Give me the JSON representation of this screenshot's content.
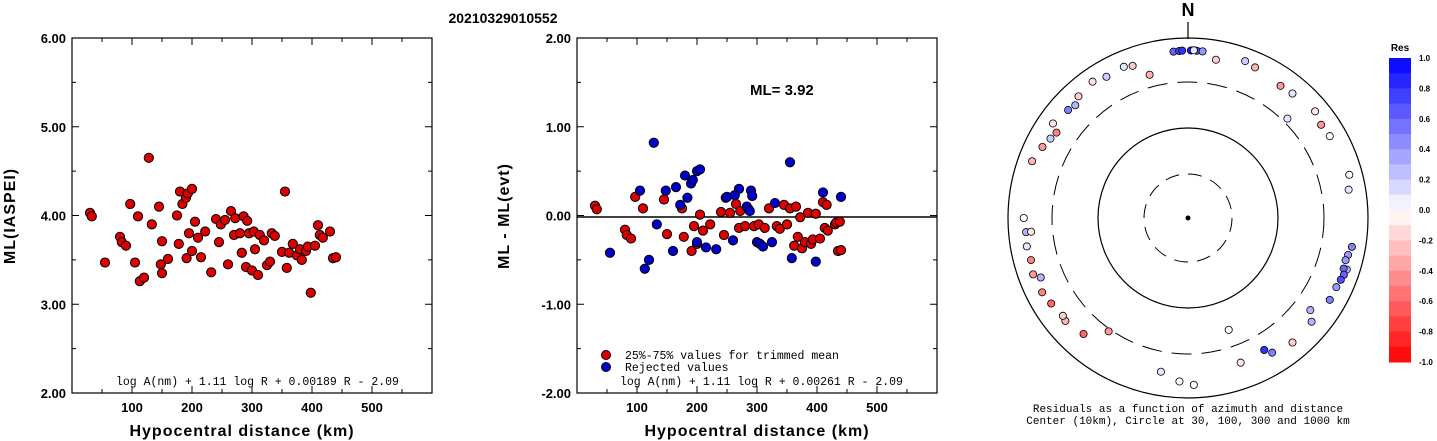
{
  "title": "20210329010552",
  "chart_data": [
    {
      "type": "scatter",
      "xlabel": "Hypocentral distance (km)",
      "ylabel": "ML(IASPEI)",
      "xlim": [
        0,
        600
      ],
      "ylim": [
        2.0,
        6.0
      ],
      "xticks": [
        "100",
        "200",
        "300",
        "400",
        "500"
      ],
      "yticks": [
        "2.00",
        "3.00",
        "4.00",
        "5.00",
        "6.00"
      ],
      "formula": "log A(nm) + 1.11 log R + 0.00189 R - 2.09",
      "points": [
        [
          30,
          4.03
        ],
        [
          33,
          3.99
        ],
        [
          55,
          3.47
        ],
        [
          80,
          3.76
        ],
        [
          83,
          3.7
        ],
        [
          90,
          3.66
        ],
        [
          97,
          4.13
        ],
        [
          105,
          3.47
        ],
        [
          110,
          3.99
        ],
        [
          113,
          3.26
        ],
        [
          120,
          3.3
        ],
        [
          128,
          4.65
        ],
        [
          133,
          3.9
        ],
        [
          145,
          4.1
        ],
        [
          148,
          3.45
        ],
        [
          150,
          3.71
        ],
        [
          150,
          3.35
        ],
        [
          160,
          3.51
        ],
        [
          175,
          4.0
        ],
        [
          178,
          3.68
        ],
        [
          180,
          4.27
        ],
        [
          184,
          4.13
        ],
        [
          190,
          4.2
        ],
        [
          191,
          3.52
        ],
        [
          193,
          4.25
        ],
        [
          195,
          3.8
        ],
        [
          200,
          4.3
        ],
        [
          200,
          3.6
        ],
        [
          205,
          3.93
        ],
        [
          210,
          3.75
        ],
        [
          215,
          3.53
        ],
        [
          222,
          3.82
        ],
        [
          232,
          3.36
        ],
        [
          240,
          3.96
        ],
        [
          245,
          3.7
        ],
        [
          248,
          3.9
        ],
        [
          255,
          3.95
        ],
        [
          260,
          3.45
        ],
        [
          265,
          4.05
        ],
        [
          270,
          3.78
        ],
        [
          272,
          3.97
        ],
        [
          280,
          3.8
        ],
        [
          283,
          3.58
        ],
        [
          286,
          3.99
        ],
        [
          290,
          3.42
        ],
        [
          292,
          3.94
        ],
        [
          295,
          3.8
        ],
        [
          300,
          3.38
        ],
        [
          303,
          3.82
        ],
        [
          305,
          3.62
        ],
        [
          310,
          3.33
        ],
        [
          313,
          3.78
        ],
        [
          320,
          3.72
        ],
        [
          325,
          3.44
        ],
        [
          330,
          3.48
        ],
        [
          333,
          3.8
        ],
        [
          338,
          3.77
        ],
        [
          350,
          3.59
        ],
        [
          355,
          4.27
        ],
        [
          358,
          3.41
        ],
        [
          362,
          3.58
        ],
        [
          368,
          3.68
        ],
        [
          375,
          3.55
        ],
        [
          380,
          3.62
        ],
        [
          383,
          3.5
        ],
        [
          390,
          3.6
        ],
        [
          393,
          3.65
        ],
        [
          398,
          3.13
        ],
        [
          405,
          3.66
        ],
        [
          410,
          3.89
        ],
        [
          413,
          3.78
        ],
        [
          418,
          3.75
        ],
        [
          430,
          3.82
        ],
        [
          435,
          3.52
        ],
        [
          440,
          3.53
        ]
      ]
    },
    {
      "type": "scatter",
      "xlabel": "Hypocentral distance (km)",
      "ylabel": "ML - ML(evt)",
      "xlim": [
        0,
        600
      ],
      "ylim": [
        -2.0,
        2.0
      ],
      "xticks": [
        "100",
        "200",
        "300",
        "400",
        "500"
      ],
      "yticks": [
        "-2.00",
        "-1.00",
        "0.00",
        "1.00",
        "2.00"
      ],
      "annotation": "ML= 3.92",
      "formula": "log A(nm) + 1.11 log R + 0.00261 R - 2.09",
      "series": [
        {
          "name": "25%-75% values for trimmed mean",
          "color": "#dd0000",
          "points": [
            [
              30,
              0.11
            ],
            [
              33,
              0.07
            ],
            [
              80,
              -0.16
            ],
            [
              83,
              -0.22
            ],
            [
              90,
              -0.26
            ],
            [
              97,
              0.21
            ],
            [
              110,
              0.08
            ],
            [
              145,
              0.18
            ],
            [
              150,
              -0.21
            ],
            [
              175,
              0.08
            ],
            [
              178,
              -0.24
            ],
            [
              191,
              -0.4
            ],
            [
              195,
              -0.12
            ],
            [
              200,
              -0.32
            ],
            [
              205,
              0.01
            ],
            [
              210,
              -0.17
            ],
            [
              222,
              -0.1
            ],
            [
              240,
              0.04
            ],
            [
              245,
              -0.22
            ],
            [
              255,
              0.03
            ],
            [
              265,
              0.13
            ],
            [
              270,
              -0.14
            ],
            [
              272,
              0.05
            ],
            [
              280,
              -0.12
            ],
            [
              286,
              0.07
            ],
            [
              295,
              -0.12
            ],
            [
              303,
              -0.1
            ],
            [
              313,
              -0.14
            ],
            [
              320,
              0.08
            ],
            [
              333,
              -0.12
            ],
            [
              338,
              -0.15
            ],
            [
              350,
              -0.1
            ],
            [
              362,
              -0.34
            ],
            [
              368,
              -0.24
            ],
            [
              375,
              -0.37
            ],
            [
              380,
              -0.3
            ],
            [
              390,
              -0.32
            ],
            [
              393,
              -0.27
            ],
            [
              405,
              -0.26
            ],
            [
              413,
              -0.14
            ],
            [
              418,
              -0.17
            ],
            [
              430,
              -0.1
            ],
            [
              435,
              -0.4
            ],
            [
              440,
              -0.39
            ],
            [
              345,
              0.12
            ],
            [
              355,
              0.08
            ],
            [
              365,
              0.1
            ],
            [
              372,
              -0.02
            ],
            [
              385,
              0.03
            ],
            [
              398,
              0.02
            ],
            [
              410,
              0.15
            ],
            [
              416,
              0.12
            ],
            [
              432,
              -0.08
            ],
            [
              438,
              -0.07
            ]
          ]
        },
        {
          "name": "Rejected values",
          "color": "#0000cc",
          "points": [
            [
              55,
              -0.42
            ],
            [
              105,
              0.28
            ],
            [
              113,
              -0.6
            ],
            [
              120,
              -0.5
            ],
            [
              128,
              0.82
            ],
            [
              133,
              -0.1
            ],
            [
              148,
              0.28
            ],
            [
              160,
              -0.4
            ],
            [
              180,
              0.45
            ],
            [
              184,
              0.2
            ],
            [
              190,
              0.36
            ],
            [
              193,
              0.4
            ],
            [
              200,
              0.5
            ],
            [
              200,
              -0.3
            ],
            [
              215,
              -0.36
            ],
            [
              232,
              -0.38
            ],
            [
              248,
              0.2
            ],
            [
              260,
              -0.28
            ],
            [
              270,
              0.3
            ],
            [
              283,
              0.1
            ],
            [
              290,
              0.28
            ],
            [
              292,
              0.22
            ],
            [
              300,
              -0.3
            ],
            [
              305,
              -0.32
            ],
            [
              310,
              -0.35
            ],
            [
              325,
              -0.3
            ],
            [
              330,
              0.14
            ],
            [
              355,
              0.6
            ],
            [
              358,
              -0.48
            ],
            [
              398,
              -0.52
            ],
            [
              410,
              0.26
            ],
            [
              440,
              0.21
            ],
            [
              165,
              0.32
            ],
            [
              172,
              0.12
            ],
            [
              205,
              0.52
            ],
            [
              250,
              0.21
            ],
            [
              263,
              0.23
            ],
            [
              288,
              0.05
            ]
          ]
        }
      ]
    },
    {
      "type": "polar-scatter",
      "north_label": "N",
      "colorbar_title": "Res",
      "colorbar_ticks": [
        "1.0",
        "0.8",
        "0.6",
        "0.4",
        "0.2",
        "0.0",
        "-0.2",
        "-0.4",
        "-0.6",
        "-0.8",
        "-1.0"
      ],
      "caption_line1": "Residuals as a function of azimuth and distance",
      "caption_line2": "Center (10km), Circle at 30, 100, 300 and 1000 km",
      "points_azimuth_distance_residual": [
        [
          355,
          700,
          0.6
        ],
        [
          357,
          705,
          0.7
        ],
        [
          358,
          710,
          0.8
        ],
        [
          1,
          712,
          0.9
        ],
        [
          3,
          710,
          0.7
        ],
        [
          5,
          706,
          0.4
        ],
        [
          2,
          716,
          0.1
        ],
        [
          20,
          700,
          0.2
        ],
        [
          24,
          660,
          -0.3
        ],
        [
          10,
          590,
          -0.2
        ],
        [
          35,
          600,
          -0.4
        ],
        [
          40,
          620,
          0.1
        ],
        [
          340,
          610,
          -0.2
        ],
        [
          337,
          650,
          0.1
        ],
        [
          330,
          630,
          0.2
        ],
        [
          325,
          690,
          -0.1
        ],
        [
          318,
          640,
          -0.2
        ],
        [
          305,
          660,
          -0.1
        ],
        [
          290,
          680,
          -0.3
        ],
        [
          296,
          610,
          -0.4
        ],
        [
          300,
          560,
          0.2
        ],
        [
          303,
          530,
          -0.5
        ],
        [
          312,
          600,
          0.5
        ],
        [
          315,
          570,
          0.3
        ],
        [
          50,
          680,
          -0.1
        ],
        [
          55,
          620,
          -0.4
        ],
        [
          60,
          640,
          0.0
        ],
        [
          75,
          700,
          0.0
        ],
        [
          80,
          630,
          0.1
        ],
        [
          100,
          690,
          0.5
        ],
        [
          103,
          650,
          0.4
        ],
        [
          105,
          630,
          0.4
        ],
        [
          108,
          700,
          0.3
        ],
        [
          108,
          640,
          0.6
        ],
        [
          110,
          680,
          0.6
        ],
        [
          112,
          660,
          0.7
        ],
        [
          115,
          640,
          0.4
        ],
        [
          120,
          640,
          0.5
        ],
        [
          270,
          650,
          0.0
        ],
        [
          265,
          620,
          0.3
        ],
        [
          260,
          640,
          0.1
        ],
        [
          255,
          620,
          -0.5
        ],
        [
          250,
          660,
          -0.4
        ],
        [
          243,
          640,
          -0.5
        ],
        [
          238,
          600,
          -0.6
        ],
        [
          230,
          580,
          -0.3
        ],
        [
          222,
          520,
          -0.6
        ],
        [
          265,
          540,
          -0.1
        ],
        [
          248,
          560,
          0.3
        ],
        [
          232,
          560,
          -0.2
        ],
        [
          190,
          520,
          0.1
        ],
        [
          183,
          640,
          0.0
        ],
        [
          178,
          700,
          0.0
        ],
        [
          160,
          490,
          -0.1
        ],
        [
          150,
          470,
          0.8
        ],
        [
          148,
          560,
          0.5
        ],
        [
          140,
          620,
          -0.2
        ],
        [
          127,
          480,
          0.3
        ],
        [
          130,
          600,
          0.3
        ],
        [
          215,
          320,
          -0.4
        ],
        [
          45,
          340,
          0.1
        ],
        [
          160,
          200,
          0.0
        ],
        [
          345,
          420,
          -0.3
        ]
      ]
    }
  ]
}
